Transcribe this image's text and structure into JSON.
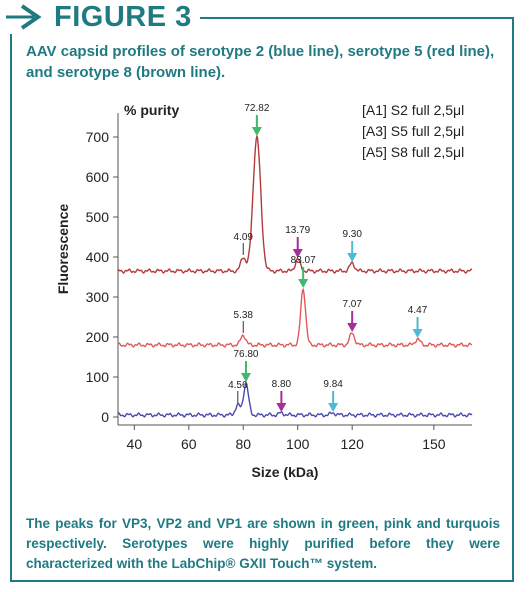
{
  "figure": {
    "label": "FIGURE 3",
    "subtitle": "AAV capsid profiles of serotype 2 (blue line), serotype 5 (red line), and serotype 8 (brown line).",
    "caption": "The peaks for VP3, VP2 and VP1 are shown in green, pink and turquois respectively. Serotypes were highly purified before they were characterized with the LabChip® GXII Touch™ system.",
    "accent_color": "#1f7a82"
  },
  "chart_data": {
    "type": "line",
    "title": "% purity",
    "xlabel": "Size (kDa)",
    "ylabel": "Fluorescence",
    "x_ticks": [
      40,
      60,
      80,
      100,
      120,
      150
    ],
    "y_ticks": [
      0,
      100,
      200,
      300,
      400,
      500,
      600,
      700
    ],
    "ylim": [
      -20,
      760
    ],
    "grid": false,
    "legend": [
      "[A1] S2 full 2,5μl",
      "[A3] S5 full 2,5μl",
      "[A5] S8 full 2,5μl"
    ],
    "legend_position": "top-right",
    "peak_colors": {
      "VP3": "#3fb96b",
      "VP2": "#a62e9a",
      "VP1": "#4fb9d8"
    },
    "series": [
      {
        "trace_color": "#b23a3a",
        "baseline": 365,
        "peaks": [
          {
            "x": 80,
            "height": 400,
            "label": "4.09"
          },
          {
            "x": 85,
            "height": 700,
            "label": "72.82",
            "marker": "VP3"
          },
          {
            "x": 100,
            "height": 395,
            "label": "13.79",
            "marker": "VP2"
          },
          {
            "x": 120,
            "height": 385,
            "label": "9.30",
            "marker": "VP1"
          }
        ]
      },
      {
        "trace_color": "#e05a5a",
        "baseline": 180,
        "peaks": [
          {
            "x": 80,
            "height": 205,
            "label": "5.38"
          },
          {
            "x": 102,
            "height": 320,
            "label": "83.07",
            "marker": "VP3"
          },
          {
            "x": 120,
            "height": 210,
            "label": "7.07",
            "marker": "VP2"
          },
          {
            "x": 144,
            "height": 195,
            "label": "4.47",
            "marker": "VP1"
          }
        ]
      },
      {
        "trace_color": "#4a4ab0",
        "baseline": 5,
        "peaks": [
          {
            "x": 78,
            "height": 30,
            "label": "4.56"
          },
          {
            "x": 81,
            "height": 85,
            "label": "76.80",
            "marker": "VP3"
          },
          {
            "x": 94,
            "height": 10,
            "label": "8.80",
            "marker": "VP2"
          },
          {
            "x": 113,
            "height": 10,
            "label": "9.84",
            "marker": "VP1"
          }
        ]
      }
    ]
  }
}
